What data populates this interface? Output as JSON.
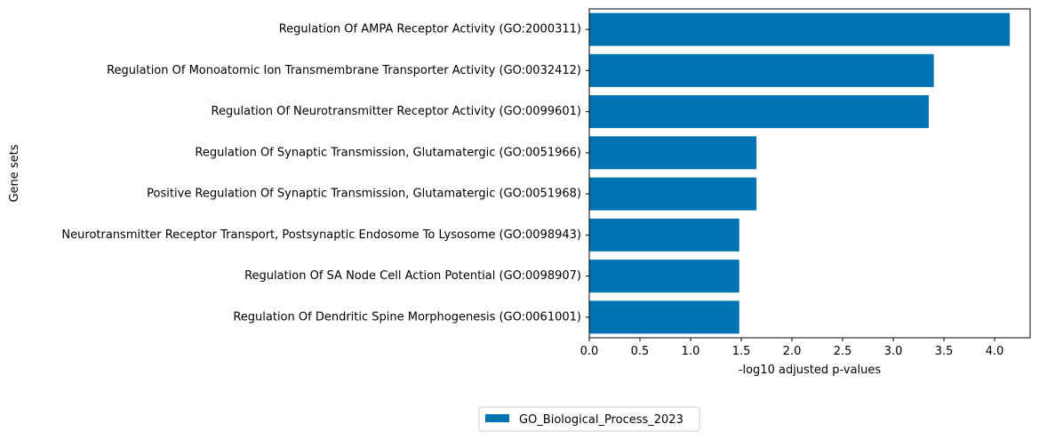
{
  "chart_data": {
    "type": "bar",
    "orientation": "horizontal",
    "xlabel": "-log10 adjusted p-values",
    "ylabel": "Gene sets",
    "xlim": [
      0,
      4.35
    ],
    "xticks": [
      "0.0",
      "0.5",
      "1.0",
      "1.5",
      "2.0",
      "2.5",
      "3.0",
      "3.5",
      "4.0"
    ],
    "grid": false,
    "legend_position": "bottom-center",
    "categories": [
      "Regulation Of AMPA Receptor Activity (GO:2000311)",
      "Regulation Of Monoatomic Ion Transmembrane Transporter Activity (GO:0032412)",
      "Regulation Of Neurotransmitter Receptor Activity (GO:0099601)",
      "Regulation Of Synaptic Transmission, Glutamatergic (GO:0051966)",
      "Positive Regulation Of Synaptic Transmission, Glutamatergic (GO:0051968)",
      "Neurotransmitter Receptor Transport, Postsynaptic Endosome To Lysosome (GO:0098943)",
      "Regulation Of SA Node Cell Action Potential (GO:0098907)",
      "Regulation Of Dendritic Spine Morphogenesis (GO:0061001)"
    ],
    "series": [
      {
        "name": "GO_Biological_Process_2023",
        "color": "#0173b2",
        "values": [
          4.15,
          3.4,
          3.35,
          1.65,
          1.65,
          1.48,
          1.48,
          1.48
        ]
      }
    ]
  }
}
